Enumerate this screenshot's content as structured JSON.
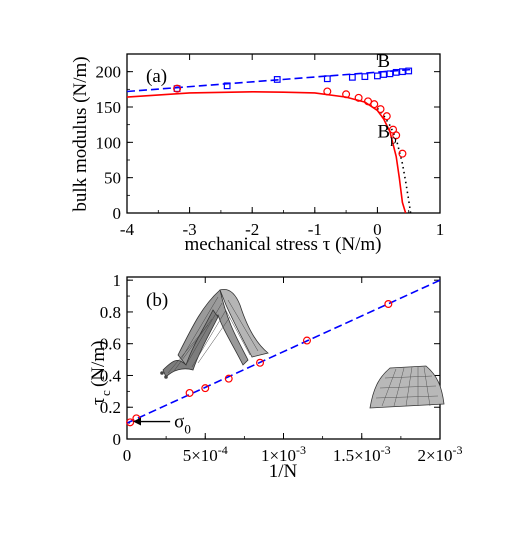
{
  "chart_data": [
    {
      "type": "line",
      "panel_label": "(a)",
      "xlabel": "mechanical stress τ (N/m)",
      "ylabel": "bulk modulus (N/m)",
      "xlim": [
        -4,
        1
      ],
      "ylim": [
        0,
        225
      ],
      "x_ticks": [
        -4,
        -3,
        -2,
        -1,
        0,
        1
      ],
      "x_tick_labels": [
        "-4",
        "-3",
        "-2",
        "-1",
        "0",
        "1"
      ],
      "y_ticks": [
        0,
        50,
        100,
        150,
        200
      ],
      "y_tick_labels": [
        "0",
        "50",
        "100",
        "150",
        "200"
      ],
      "annotations": [
        {
          "text": "B",
          "x": 0.0,
          "y": 215,
          "color": "#0000ff"
        },
        {
          "text": "B",
          "sub": "p",
          "x": 0.0,
          "y": 115,
          "color": "#000000"
        }
      ],
      "series": [
        {
          "name": "B",
          "kind": "markers",
          "marker": "square",
          "color": "#0000ff",
          "x": [
            -3.2,
            -2.4,
            -1.6,
            -0.8,
            -0.4,
            -0.2,
            0.0,
            0.1,
            0.2,
            0.3,
            0.4,
            0.5
          ],
          "y": [
            176,
            180,
            189,
            190,
            192,
            193,
            194,
            196,
            197,
            199,
            200,
            201
          ]
        },
        {
          "name": "B fit",
          "kind": "line",
          "dash": "dashed",
          "color": "#0000ff",
          "x": [
            -4,
            0.55
          ],
          "y": [
            172,
            203
          ]
        },
        {
          "name": "B_p",
          "kind": "markers",
          "marker": "circle",
          "color": "#ff0000",
          "x": [
            -3.2,
            -0.8,
            -0.5,
            -0.3,
            -0.15,
            -0.05,
            0.05,
            0.15,
            0.25,
            0.3,
            0.4
          ],
          "y": [
            176,
            172,
            168,
            163,
            158,
            154,
            147,
            137,
            118,
            110,
            84
          ]
        },
        {
          "name": "B_p fit",
          "kind": "line",
          "dash": "solid",
          "color": "#ff0000",
          "x": [
            -4,
            -3,
            -2,
            -1.5,
            -1,
            -0.5,
            -0.2,
            0,
            0.1,
            0.2,
            0.3,
            0.35,
            0.4,
            0.45
          ],
          "y": [
            164,
            170,
            171.5,
            171,
            170,
            164,
            157,
            145,
            133,
            115,
            80,
            50,
            15,
            0
          ]
        },
        {
          "name": "B_p dotted",
          "kind": "line",
          "dash": "dotted",
          "color": "#000000",
          "x": [
            0,
            0.1,
            0.2,
            0.3,
            0.4,
            0.45,
            0.5,
            0.53
          ],
          "y": [
            148,
            138,
            124,
            105,
            70,
            45,
            18,
            0
          ]
        }
      ]
    },
    {
      "type": "scatter",
      "panel_label": "(b)",
      "xlabel": "1/N",
      "ylabel": "τ",
      "ylabel_sub": "c",
      "ylabel_units": "(N/m)",
      "xlim": [
        0,
        0.002
      ],
      "ylim": [
        0,
        1.02
      ],
      "x_ticks": [
        0,
        0.0005,
        0.001,
        0.0015,
        0.002
      ],
      "x_tick_labels": [
        {
          "base": "0",
          "exp": ""
        },
        {
          "base": "5×10",
          "exp": "-4"
        },
        {
          "base": "1×10",
          "exp": "-3"
        },
        {
          "base": "1.5×10",
          "exp": "-3"
        },
        {
          "base": "2×10",
          "exp": "-3"
        }
      ],
      "y_ticks": [
        0,
        0.2,
        0.4,
        0.6,
        0.8,
        1.0
      ],
      "y_tick_labels": [
        "0",
        "0.2",
        "0.4",
        "0.6",
        "0.8",
        "1"
      ],
      "annotations": [
        {
          "text": "σ",
          "sub": "0",
          "x": 0.00025,
          "y": 0.11,
          "arrow_to": [
            0.0,
            0.11
          ]
        }
      ],
      "series": [
        {
          "name": "τc",
          "kind": "markers",
          "marker": "circle",
          "color": "#ff0000",
          "x": [
            2e-05,
            6e-05,
            0.0004,
            0.0005,
            0.00065,
            0.00085,
            0.00115,
            0.00167
          ],
          "y": [
            0.105,
            0.13,
            0.29,
            0.32,
            0.38,
            0.48,
            0.62,
            0.85
          ]
        },
        {
          "name": "τc fit",
          "kind": "line",
          "dash": "dashed",
          "color": "#0000ff",
          "x": [
            0,
            0.002
          ],
          "y": [
            0.1,
            1.0
          ]
        }
      ]
    }
  ]
}
